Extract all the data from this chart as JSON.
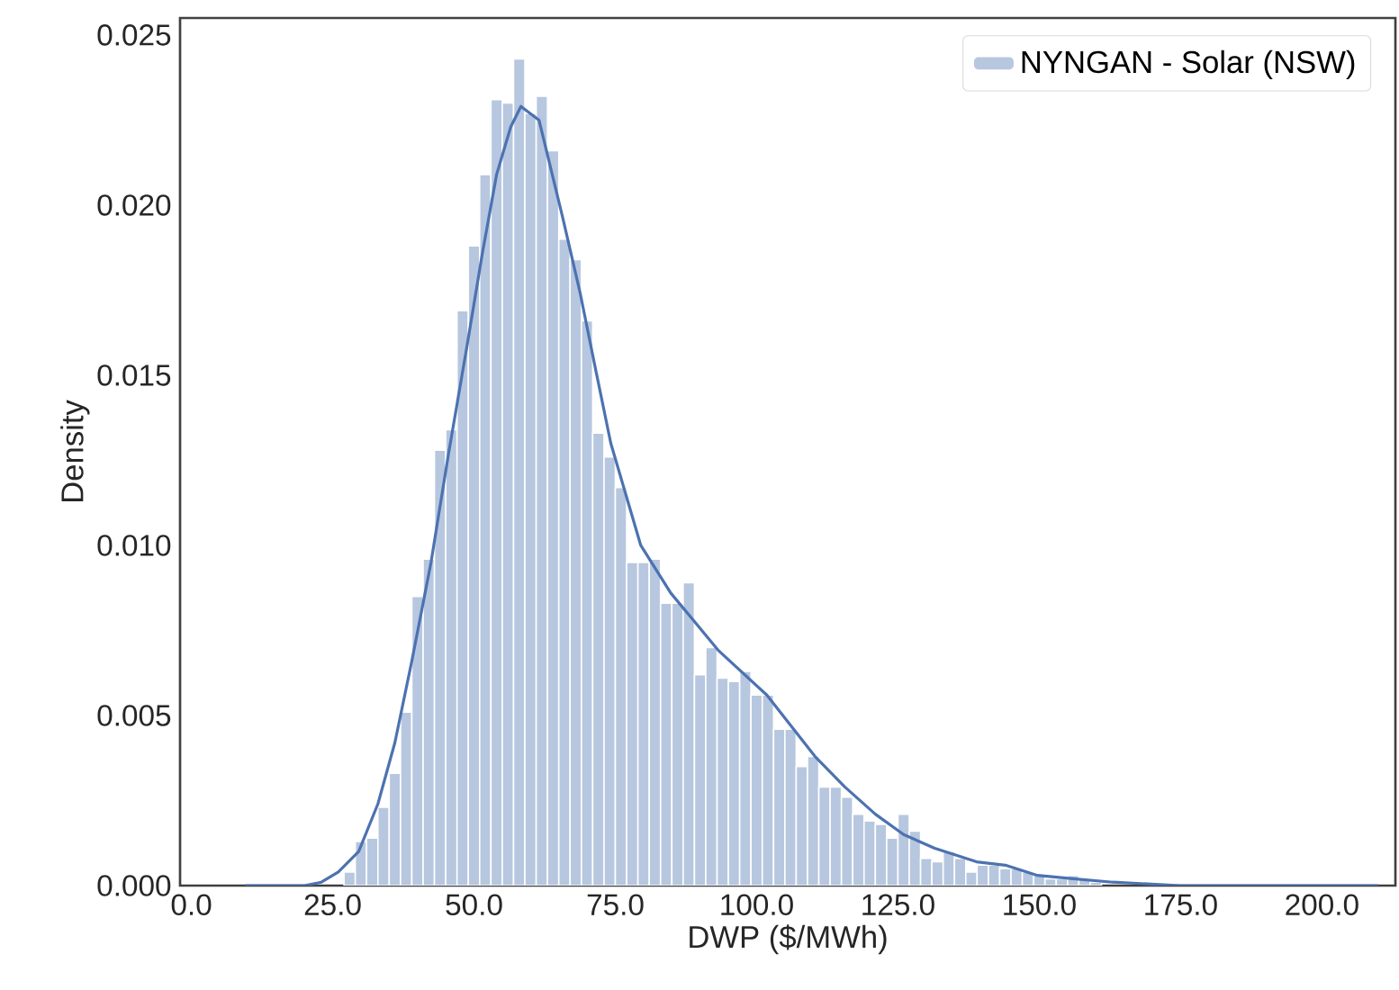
{
  "chart_data": {
    "type": "histogram",
    "xlabel": "DWP ($/MWh)",
    "ylabel": "Density",
    "xlim": [
      -2,
      213
    ],
    "ylim": [
      0,
      0.0255
    ],
    "xticks": [
      {
        "value": 0,
        "label": "0.0"
      },
      {
        "value": 25,
        "label": "25.0"
      },
      {
        "value": 50,
        "label": "50.0"
      },
      {
        "value": 75,
        "label": "75.0"
      },
      {
        "value": 100,
        "label": "100.0"
      },
      {
        "value": 125,
        "label": "125.0"
      },
      {
        "value": 150,
        "label": "150.0"
      },
      {
        "value": 175,
        "label": "175.0"
      },
      {
        "value": 200,
        "label": "200.0"
      }
    ],
    "yticks": [
      {
        "value": 0,
        "label": "0.000"
      },
      {
        "value": 0.005,
        "label": "0.005"
      },
      {
        "value": 0.01,
        "label": "0.010"
      },
      {
        "value": 0.015,
        "label": "0.015"
      },
      {
        "value": 0.02,
        "label": "0.020"
      },
      {
        "value": 0.025,
        "label": "0.025"
      }
    ],
    "grid": false,
    "legend": "top right",
    "series": [
      {
        "name": "NYNGAN - Solar (NSW)",
        "color": "#b7c7df",
        "bins": [
          27,
          29,
          31,
          33,
          35,
          37,
          39,
          41,
          43,
          45,
          47,
          49,
          51,
          53,
          55,
          57,
          59,
          61,
          63,
          65,
          67,
          69,
          71,
          73,
          75,
          77,
          79,
          81,
          83,
          85,
          87,
          89,
          91,
          93,
          95,
          97,
          99,
          101,
          103,
          105,
          107,
          109,
          111,
          113,
          115,
          117,
          119,
          121,
          123,
          125,
          127,
          129,
          131,
          133,
          135,
          137,
          139,
          141,
          143,
          145,
          147,
          149,
          151,
          153,
          155,
          157,
          159,
          161
        ],
        "values": [
          0.0004,
          0.0013,
          0.0014,
          0.0023,
          0.0033,
          0.0051,
          0.0085,
          0.0096,
          0.0128,
          0.0134,
          0.0169,
          0.0188,
          0.0209,
          0.0231,
          0.023,
          0.0243,
          0.0227,
          0.0232,
          0.0216,
          0.019,
          0.0184,
          0.0166,
          0.0133,
          0.0126,
          0.0117,
          0.0095,
          0.0095,
          0.0096,
          0.0083,
          0.0083,
          0.0089,
          0.0062,
          0.007,
          0.0061,
          0.006,
          0.0063,
          0.0056,
          0.0056,
          0.0046,
          0.0046,
          0.0035,
          0.0038,
          0.0029,
          0.0029,
          0.0026,
          0.0021,
          0.0019,
          0.0018,
          0.0014,
          0.0021,
          0.0016,
          0.0008,
          0.0007,
          0.001,
          0.0008,
          0.0004,
          0.0006,
          0.0006,
          0.0005,
          0.0005,
          0.0004,
          0.0003,
          0.0002,
          0.0002,
          0.0003,
          0.0002,
          0.0001
        ]
      },
      {
        "type": "line",
        "color": "#4c72b0",
        "x": [
          9.5,
          15,
          20,
          23,
          26,
          29.6,
          33,
          36,
          39,
          42.4,
          45.5,
          48.7,
          51.5,
          54,
          56.5,
          58.3,
          61.5,
          65.6,
          68.8,
          71.6,
          74.2,
          79.5,
          84.8,
          93.3,
          101.8,
          110.3,
          115.6,
          121,
          126,
          131.5,
          138.9,
          144,
          149.7,
          156,
          163,
          175,
          190,
          210
        ],
        "values": [
          0,
          0,
          0,
          0.0001,
          0.0004,
          0.001,
          0.0024,
          0.0042,
          0.0066,
          0.0095,
          0.0127,
          0.0158,
          0.0186,
          0.0209,
          0.0223,
          0.0229,
          0.0225,
          0.0197,
          0.0174,
          0.0151,
          0.013,
          0.01,
          0.0086,
          0.0069,
          0.0056,
          0.0038,
          0.0029,
          0.0021,
          0.0015,
          0.0011,
          0.0007,
          0.0006,
          0.0003,
          0.0002,
          0.0001,
          0,
          0,
          0
        ]
      }
    ]
  }
}
